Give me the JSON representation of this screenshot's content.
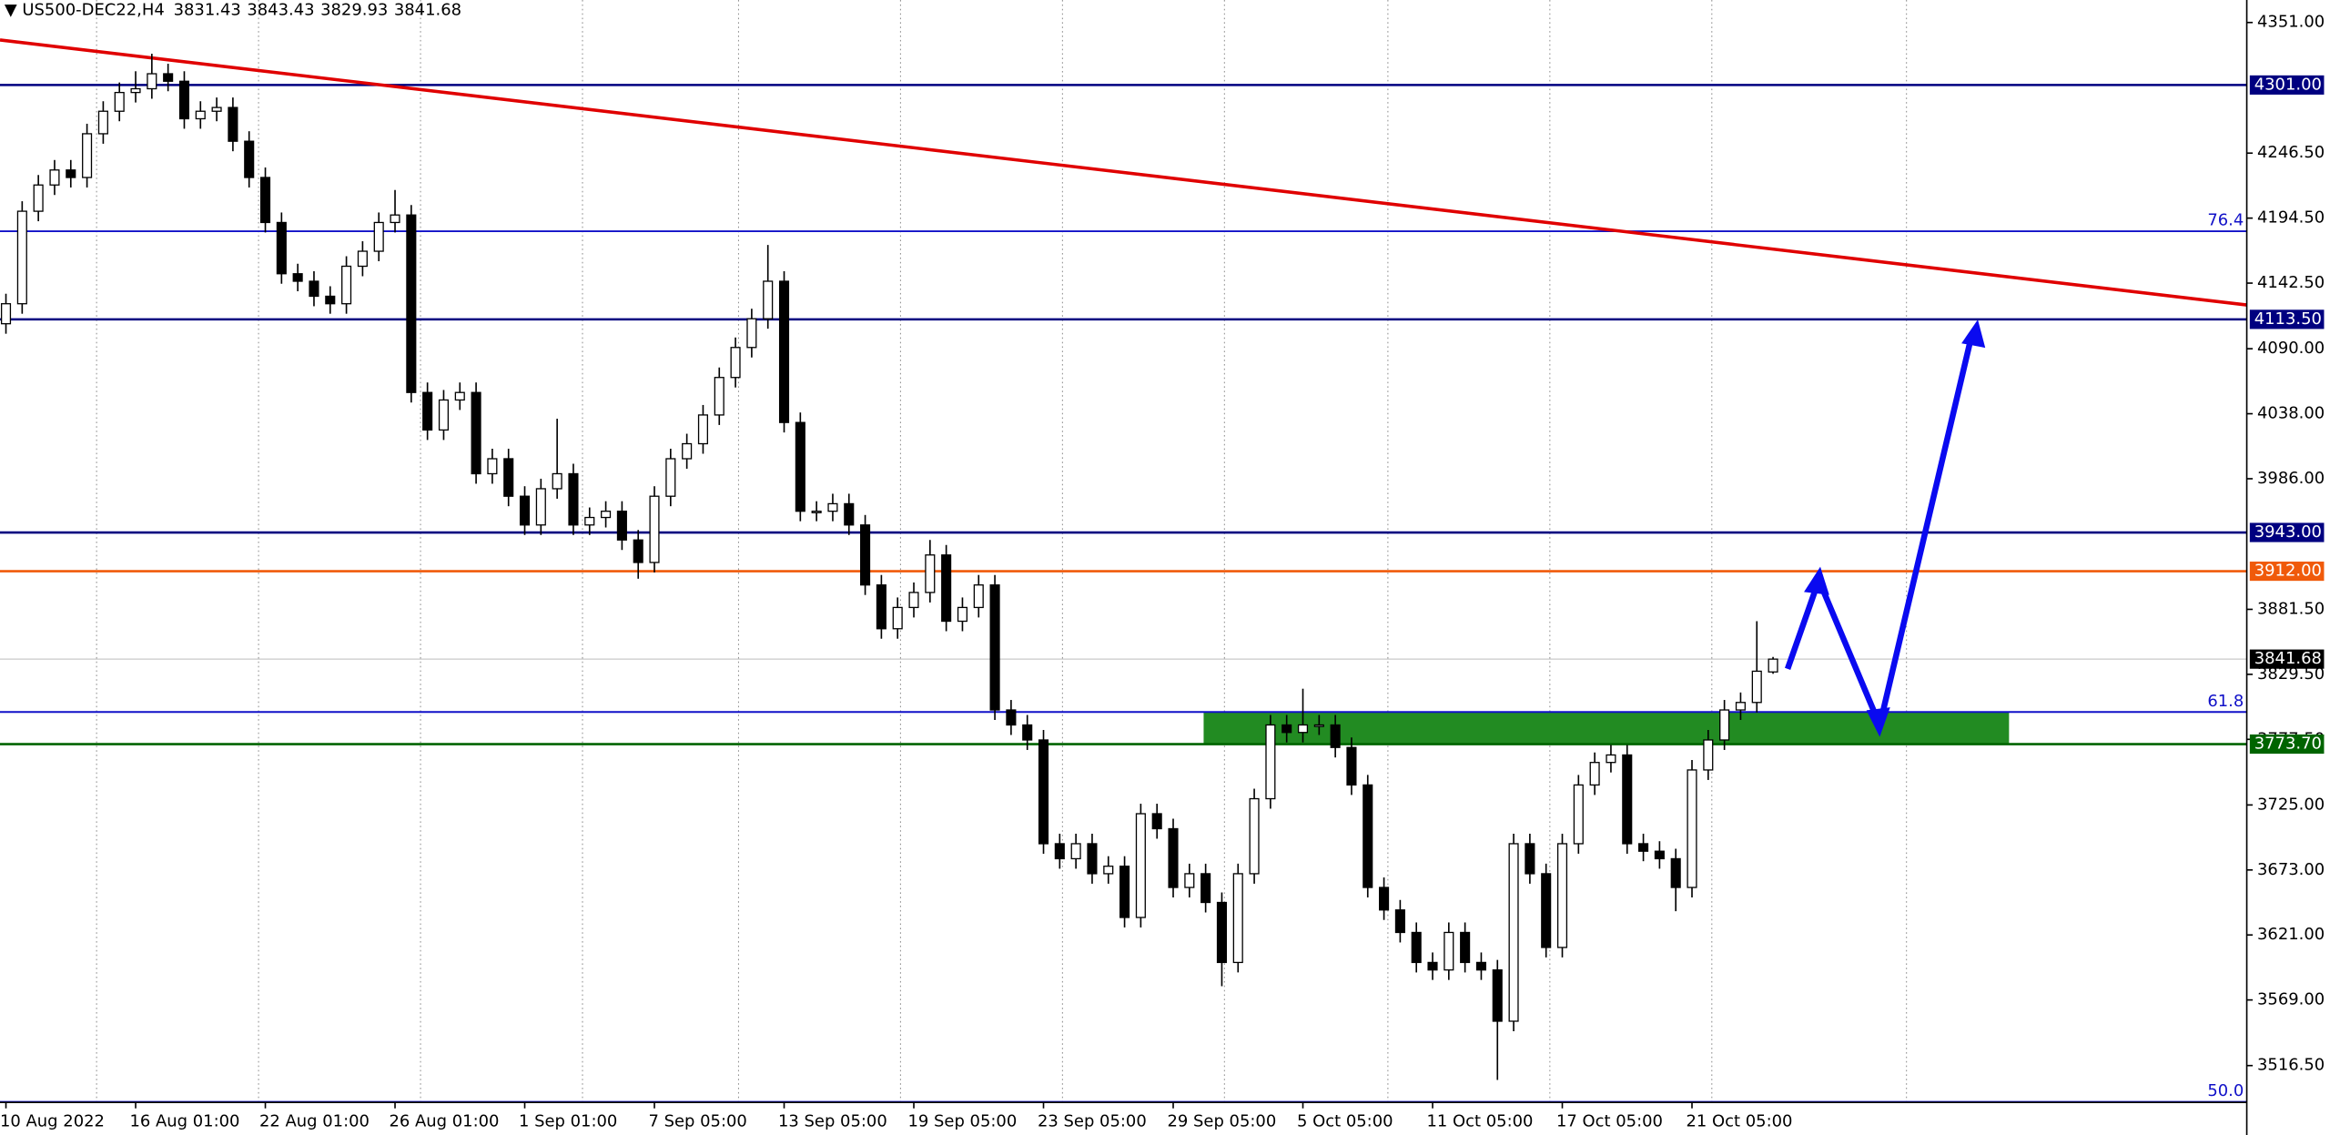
{
  "chart_data": {
    "type": "candlestick",
    "symbol": "US500-DEC22,H4",
    "categories": [
      "10 Aug 2022",
      null,
      null,
      null,
      null,
      null,
      null,
      null,
      "16 Aug 01:00",
      null,
      null,
      null,
      null,
      null,
      null,
      null,
      "22 Aug 01:00",
      null,
      null,
      null,
      null,
      null,
      null,
      null,
      "26 Aug 01:00",
      null,
      null,
      null,
      null,
      null,
      null,
      null,
      "1 Sep 01:00",
      null,
      null,
      null,
      null,
      null,
      null,
      null,
      "7 Sep 05:00",
      null,
      null,
      null,
      null,
      null,
      null,
      null,
      "13 Sep 05:00",
      null,
      null,
      null,
      null,
      null,
      null,
      null,
      "19 Sep 05:00",
      null,
      null,
      null,
      null,
      null,
      null,
      null,
      "23 Sep 05:00",
      null,
      null,
      null,
      null,
      null,
      null,
      null,
      "29 Sep 05:00",
      null,
      null,
      null,
      null,
      null,
      null,
      null,
      "5 Oct 05:00",
      null,
      null,
      null,
      null,
      null,
      null,
      null,
      "11 Oct 05:00",
      null,
      null,
      null,
      null,
      null,
      null,
      null,
      "17 Oct 05:00",
      null,
      null,
      null,
      null,
      null,
      null,
      null,
      "21 Oct 05:00",
      null,
      null,
      null,
      null,
      null
    ],
    "open": [
      4110,
      4126,
      4200,
      4221,
      4233,
      4227,
      4262,
      4280,
      4295,
      4298,
      4310,
      4304,
      4274,
      4280,
      4283,
      4256,
      4227,
      4191,
      4150,
      4144,
      4132,
      4126,
      4156,
      4168,
      4191,
      4197,
      4055,
      4025,
      4049,
      4055,
      3990,
      4002,
      3972,
      3949,
      3978,
      3990,
      3949,
      3955,
      3960,
      3937,
      3919,
      3972,
      4002,
      4014,
      4037,
      4067,
      4091,
      4114,
      4144,
      4031,
      3960,
      3960,
      3966,
      3949,
      3901,
      3866,
      3883,
      3895,
      3925,
      3872,
      3883,
      3901,
      3801,
      3789,
      3777,
      3694,
      3682,
      3694,
      3670,
      3676,
      3635,
      3718,
      3706,
      3659,
      3670,
      3647,
      3599,
      3670,
      3730,
      3789,
      3783,
      3789,
      3789,
      3771,
      3741,
      3659,
      3641,
      3623,
      3599,
      3593,
      3623,
      3599,
      3593,
      3552,
      3694,
      3670,
      3611,
      3694,
      3741,
      3759,
      3765,
      3694,
      3688,
      3682,
      3659,
      3753,
      3777,
      3801,
      3807,
      3831.43
    ],
    "high": [
      4134,
      4208,
      4229,
      4241,
      4241,
      4270,
      4288,
      4303,
      4312,
      4326,
      4318,
      4312,
      4288,
      4291,
      4291,
      4264,
      4235,
      4199,
      4158,
      4152,
      4140,
      4164,
      4176,
      4199,
      4217,
      4205,
      4063,
      4057,
      4063,
      4063,
      4010,
      4010,
      3980,
      3986,
      4034,
      3998,
      3963,
      3968,
      3968,
      3945,
      3980,
      4010,
      4022,
      4045,
      4075,
      4099,
      4122,
      4173,
      4152,
      4039,
      3968,
      3974,
      3974,
      3957,
      3909,
      3891,
      3903,
      3937,
      3933,
      3891,
      3909,
      3909,
      3809,
      3797,
      3785,
      3702,
      3702,
      3702,
      3684,
      3684,
      3726,
      3726,
      3714,
      3678,
      3678,
      3655,
      3678,
      3738,
      3797,
      3797,
      3818,
      3797,
      3797,
      3779,
      3749,
      3667,
      3649,
      3631,
      3607,
      3631,
      3631,
      3607,
      3601,
      3702,
      3702,
      3678,
      3702,
      3749,
      3767,
      3773,
      3773,
      3702,
      3696,
      3690,
      3761,
      3785,
      3809,
      3815,
      3872,
      3843.43
    ],
    "low": [
      4102,
      4118,
      4192,
      4213,
      4219,
      4219,
      4254,
      4272,
      4287,
      4290,
      4296,
      4266,
      4266,
      4272,
      4248,
      4219,
      4183,
      4142,
      4136,
      4124,
      4118,
      4118,
      4148,
      4160,
      4183,
      4047,
      4017,
      4017,
      4041,
      3982,
      3982,
      3964,
      3941,
      3941,
      3970,
      3941,
      3941,
      3947,
      3929,
      3906,
      3911,
      3964,
      3994,
      4006,
      4029,
      4059,
      4083,
      4106,
      4023,
      3952,
      3952,
      3952,
      3941,
      3893,
      3858,
      3858,
      3875,
      3887,
      3864,
      3864,
      3875,
      3793,
      3781,
      3769,
      3686,
      3674,
      3674,
      3662,
      3662,
      3627,
      3627,
      3698,
      3651,
      3651,
      3639,
      3580,
      3591,
      3662,
      3722,
      3775,
      3775,
      3781,
      3763,
      3733,
      3651,
      3633,
      3615,
      3591,
      3585,
      3585,
      3591,
      3585,
      3505,
      3544,
      3662,
      3603,
      3603,
      3686,
      3733,
      3751,
      3686,
      3680,
      3674,
      3640,
      3651,
      3745,
      3769,
      3793,
      3799,
      3829.93
    ],
    "close": [
      4126,
      4200,
      4221,
      4233,
      4227,
      4262,
      4280,
      4295,
      4298,
      4310,
      4304,
      4274,
      4280,
      4283,
      4256,
      4227,
      4191,
      4150,
      4144,
      4132,
      4126,
      4156,
      4168,
      4191,
      4197,
      4055,
      4025,
      4049,
      4055,
      3990,
      4002,
      3972,
      3949,
      3978,
      3990,
      3949,
      3955,
      3960,
      3937,
      3919,
      3972,
      4002,
      4014,
      4037,
      4067,
      4091,
      4114,
      4144,
      4031,
      3960,
      3960,
      3966,
      3949,
      3901,
      3866,
      3883,
      3895,
      3925,
      3872,
      3883,
      3901,
      3801,
      3789,
      3777,
      3694,
      3682,
      3694,
      3670,
      3676,
      3635,
      3718,
      3706,
      3659,
      3670,
      3647,
      3599,
      3670,
      3730,
      3789,
      3783,
      3789,
      3789,
      3771,
      3741,
      3659,
      3641,
      3623,
      3599,
      3593,
      3623,
      3599,
      3593,
      3552,
      3694,
      3670,
      3611,
      3694,
      3741,
      3759,
      3765,
      3694,
      3688,
      3682,
      3659,
      3753,
      3777,
      3801,
      3807,
      3832,
      3841.68
    ],
    "ylim": [
      3487,
      4369
    ],
    "yticks": [
      {
        "value": 4351,
        "label": "4351.00"
      },
      {
        "value": 4246.5,
        "label": "4246.50"
      },
      {
        "value": 4194.5,
        "label": "4194.50"
      },
      {
        "value": 4142.5,
        "label": "4142.50"
      },
      {
        "value": 4090,
        "label": "4090.00"
      },
      {
        "value": 4038,
        "label": "4038.00"
      },
      {
        "value": 3986,
        "label": "3986.00"
      },
      {
        "value": 3881.5,
        "label": "3881.50"
      },
      {
        "value": 3829.5,
        "label": "3829.50"
      },
      {
        "value": 3777.5,
        "label": "3777.50"
      },
      {
        "value": 3725,
        "label": "3725.00"
      },
      {
        "value": 3673,
        "label": "3673.00"
      },
      {
        "value": 3621,
        "label": "3621.00"
      },
      {
        "value": 3569,
        "label": "3569.00"
      },
      {
        "value": 3516.5,
        "label": "3516.50"
      }
    ],
    "levels": [
      {
        "label": "4301.00",
        "price": 4301,
        "color": "#000080"
      },
      {
        "label": "4113.50",
        "price": 4113.5,
        "color": "#000080"
      },
      {
        "label": "3943.00",
        "price": 3943,
        "color": "#000080"
      },
      {
        "label": "3912.00",
        "price": 3912,
        "color": "#f05a0a"
      },
      {
        "label": "3773.70",
        "price": 3773.7,
        "color": "#006400"
      }
    ],
    "fib": [
      {
        "label": "76.4",
        "price": 4184
      },
      {
        "label": "61.8",
        "price": 3799.4
      },
      {
        "label": "50.0",
        "price": 3487.5
      }
    ],
    "zone": {
      "from": 3773.7,
      "to": 3799.4,
      "color": "#228b22"
    },
    "trendline": {
      "from": 4337,
      "to": 4125,
      "color": "#e00000"
    }
  }
}
